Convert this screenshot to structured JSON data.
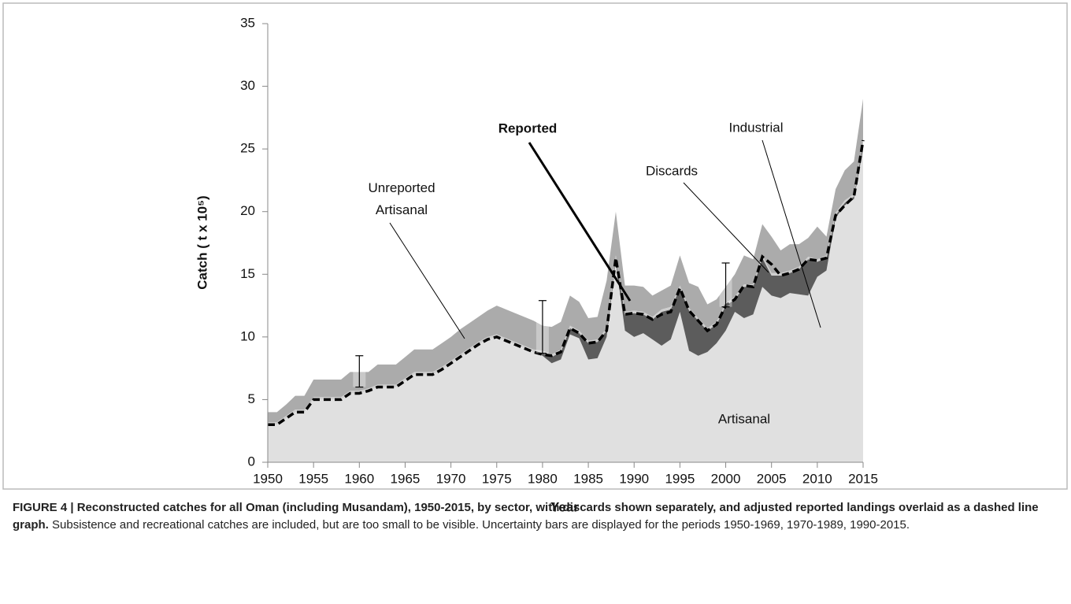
{
  "chart_data": {
    "type": "area",
    "y_label": "Catch ( t x 10⁵)",
    "x_label": "Year",
    "x": [
      1950,
      1951,
      1952,
      1953,
      1954,
      1955,
      1956,
      1957,
      1958,
      1959,
      1960,
      1961,
      1962,
      1963,
      1964,
      1965,
      1966,
      1967,
      1968,
      1969,
      1970,
      1971,
      1972,
      1973,
      1974,
      1975,
      1976,
      1977,
      1978,
      1979,
      1980,
      1981,
      1982,
      1983,
      1984,
      1985,
      1986,
      1987,
      1988,
      1989,
      1990,
      1991,
      1992,
      1993,
      1994,
      1995,
      1996,
      1997,
      1998,
      1999,
      2000,
      2001,
      2002,
      2003,
      2004,
      2005,
      2006,
      2007,
      2008,
      2009,
      2010,
      2011,
      2012,
      2013,
      2014,
      2015
    ],
    "series": [
      {
        "name": "Artisanal",
        "type": "area",
        "color": "#e0e0e0",
        "values": [
          3,
          3,
          3.5,
          4,
          4,
          5,
          5,
          5,
          5,
          5.5,
          5.5,
          5.7,
          6,
          6,
          6,
          6.5,
          7,
          7,
          7,
          7.4,
          7.9,
          8.4,
          8.9,
          9.4,
          9.8,
          10,
          9.7,
          9.4,
          9.1,
          8.8,
          8.5,
          7.9,
          8.2,
          10.2,
          9.9,
          8.2,
          8.3,
          10,
          16,
          10.5,
          10,
          10.3,
          9.8,
          9.3,
          9.8,
          12,
          8.9,
          8.5,
          8.8,
          9.5,
          10.5,
          12,
          11.5,
          11.8,
          14,
          13.3,
          13.1,
          13.5,
          13.4,
          13.3,
          14.8,
          15.3,
          19.5,
          20.5,
          21,
          25
        ]
      },
      {
        "name": "Industrial",
        "type": "area",
        "color": "#5c5c5c",
        "values": [
          0,
          0,
          0,
          0,
          0,
          0,
          0,
          0,
          0,
          0,
          0,
          0,
          0,
          0,
          0,
          0,
          0,
          0,
          0,
          0,
          0,
          0,
          0,
          0,
          0,
          0,
          0,
          0,
          0,
          0,
          0.2,
          0.5,
          0.6,
          0.5,
          0.4,
          1.3,
          1.3,
          0.5,
          0.3,
          1.3,
          1.9,
          1.5,
          1.6,
          2.7,
          2.4,
          1.9,
          3.2,
          2.8,
          1.7,
          1.5,
          2.0,
          1.0,
          2.5,
          2.2,
          2.3,
          1.6,
          1.8,
          1.6,
          2.0,
          2.9,
          1.2,
          1.0,
          0.2,
          0.2,
          0.2,
          0.5
        ]
      },
      {
        "name": "Discards",
        "type": "area",
        "color": "#cfcfcf",
        "values": [
          0.2,
          0.2,
          0.2,
          0.2,
          0.2,
          0.2,
          0.2,
          0.2,
          0.2,
          0.2,
          0.2,
          0.2,
          0.2,
          0.2,
          0.2,
          0.2,
          0.2,
          0.2,
          0.2,
          0.2,
          0.2,
          0.2,
          0.2,
          0.2,
          0.2,
          0.2,
          0.2,
          0.2,
          0.2,
          0.2,
          0.2,
          0.2,
          0.2,
          0.2,
          0.2,
          0.2,
          0.2,
          0.2,
          0.2,
          0.2,
          0.2,
          0.2,
          0.2,
          0.2,
          0.2,
          0.2,
          0.2,
          0.2,
          0.2,
          0.2,
          0.2,
          0.2,
          0.2,
          0.2,
          0.2,
          0.2,
          0.2,
          0.2,
          0.2,
          0.2,
          0.2,
          0.2,
          0.2,
          0.2,
          0.2,
          0.2
        ]
      },
      {
        "name": "Unreported Artisanal",
        "type": "area",
        "color": "#ababab",
        "values": [
          0.8,
          0.8,
          0.9,
          1.1,
          1.1,
          1.4,
          1.4,
          1.4,
          1.4,
          1.5,
          1.5,
          1.3,
          1.6,
          1.6,
          1.6,
          1.7,
          1.8,
          1.8,
          1.8,
          1.9,
          1.9,
          2.0,
          2.0,
          2.0,
          2.1,
          2.3,
          2.3,
          2.3,
          2.3,
          2.3,
          2.0,
          2.2,
          2.2,
          2.4,
          2.3,
          1.8,
          1.8,
          3.8,
          3.5,
          2.1,
          2.0,
          2.0,
          1.7,
          1.5,
          1.7,
          2.4,
          2.0,
          2.5,
          1.9,
          1.8,
          1.3,
          1.8,
          2.3,
          2.0,
          2.5,
          2.9,
          1.8,
          2.1,
          1.8,
          1.5,
          2.6,
          1.5,
          1.9,
          2.4,
          2.6,
          3.3
        ]
      },
      {
        "name": "Reported",
        "type": "line",
        "style": "dashed",
        "color": "#000000",
        "values": [
          3,
          3,
          3.5,
          4,
          4,
          5,
          5,
          5,
          5,
          5.5,
          5.5,
          5.7,
          6,
          6,
          6,
          6.5,
          7,
          7,
          7,
          7.4,
          7.9,
          8.4,
          8.9,
          9.4,
          9.8,
          10,
          9.7,
          9.4,
          9.1,
          8.8,
          8.6,
          8.5,
          8.8,
          10.7,
          10.3,
          9.5,
          9.6,
          10.5,
          16.3,
          11.8,
          11.9,
          11.8,
          11.4,
          11.8,
          12.0,
          13.9,
          12.1,
          11.3,
          10.5,
          11,
          12.5,
          13,
          14.1,
          14,
          16.4,
          15.8,
          14.9,
          15.1,
          15.4,
          16.2,
          16.1,
          16.3,
          19.7,
          20.5,
          21.2,
          25.7
        ]
      }
    ],
    "error_bars": [
      {
        "x": 1960,
        "low": 6,
        "high": 8.5
      },
      {
        "x": 1980,
        "low": 8.7,
        "high": 12.9
      },
      {
        "x": 2000,
        "low": 12.4,
        "high": 15.9
      }
    ],
    "xlim": [
      1950,
      2015
    ],
    "xticks": [
      1950,
      1955,
      1960,
      1965,
      1970,
      1975,
      1980,
      1985,
      1990,
      1995,
      2000,
      2005,
      2010,
      2015
    ],
    "ylim": [
      0,
      35
    ],
    "yticks": [
      0,
      5,
      10,
      15,
      20,
      25,
      30,
      35
    ],
    "grid": false
  },
  "caption": {
    "bold": "FIGURE 4 | Reconstructed catches for all Oman (including Musandam), 1950-2015, by sector, with discards shown separately, and adjusted reported landings overlaid as a dashed line graph.",
    "text": "Subsistence and recreational catches are included, but are too small to be visible. Uncertainty bars are displayed for the periods 1950-1969, 1970-1989, 1990-2015."
  }
}
